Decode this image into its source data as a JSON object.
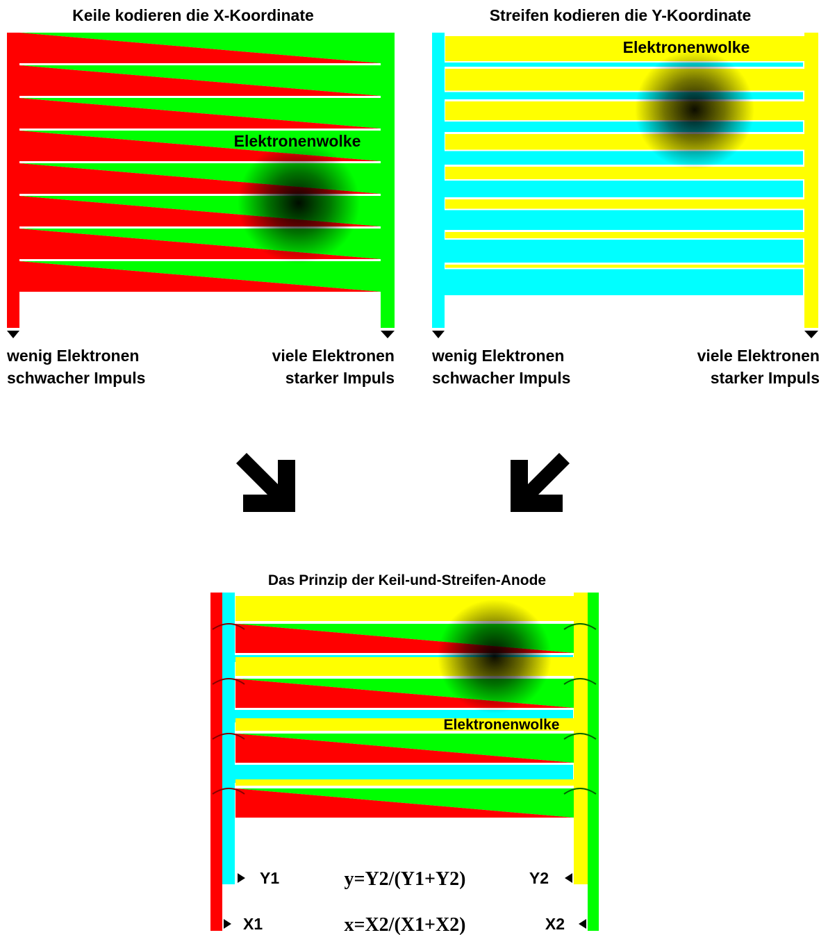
{
  "panels": [
    {
      "title": "Keile kodieren die X-Koordinate",
      "cloud_label": "Elektronenwolke",
      "left_label": [
        "wenig Elektronen",
        "schwacher Impuls"
      ],
      "right_label": [
        "viele Elektronen",
        "starker Impuls"
      ]
    },
    {
      "title": "Streifen kodieren die Y-Koordinate",
      "cloud_label": "Elektronenwolke",
      "left_label": [
        "wenig Elektronen",
        "schwacher Impuls"
      ],
      "right_label": [
        "viele Elektronen",
        "starker Impuls"
      ]
    }
  ],
  "combined": {
    "title": "Das Prinzip der Keil-und-Streifen-Anode",
    "cloud_label": "Elektronenwolke",
    "y_left": "Y1",
    "y_formula": "y=Y2/(Y1+Y2)",
    "y_right": "Y2",
    "x_left": "X1",
    "x_formula": "x=X2/(X1+X2)",
    "x_right": "X2"
  }
}
